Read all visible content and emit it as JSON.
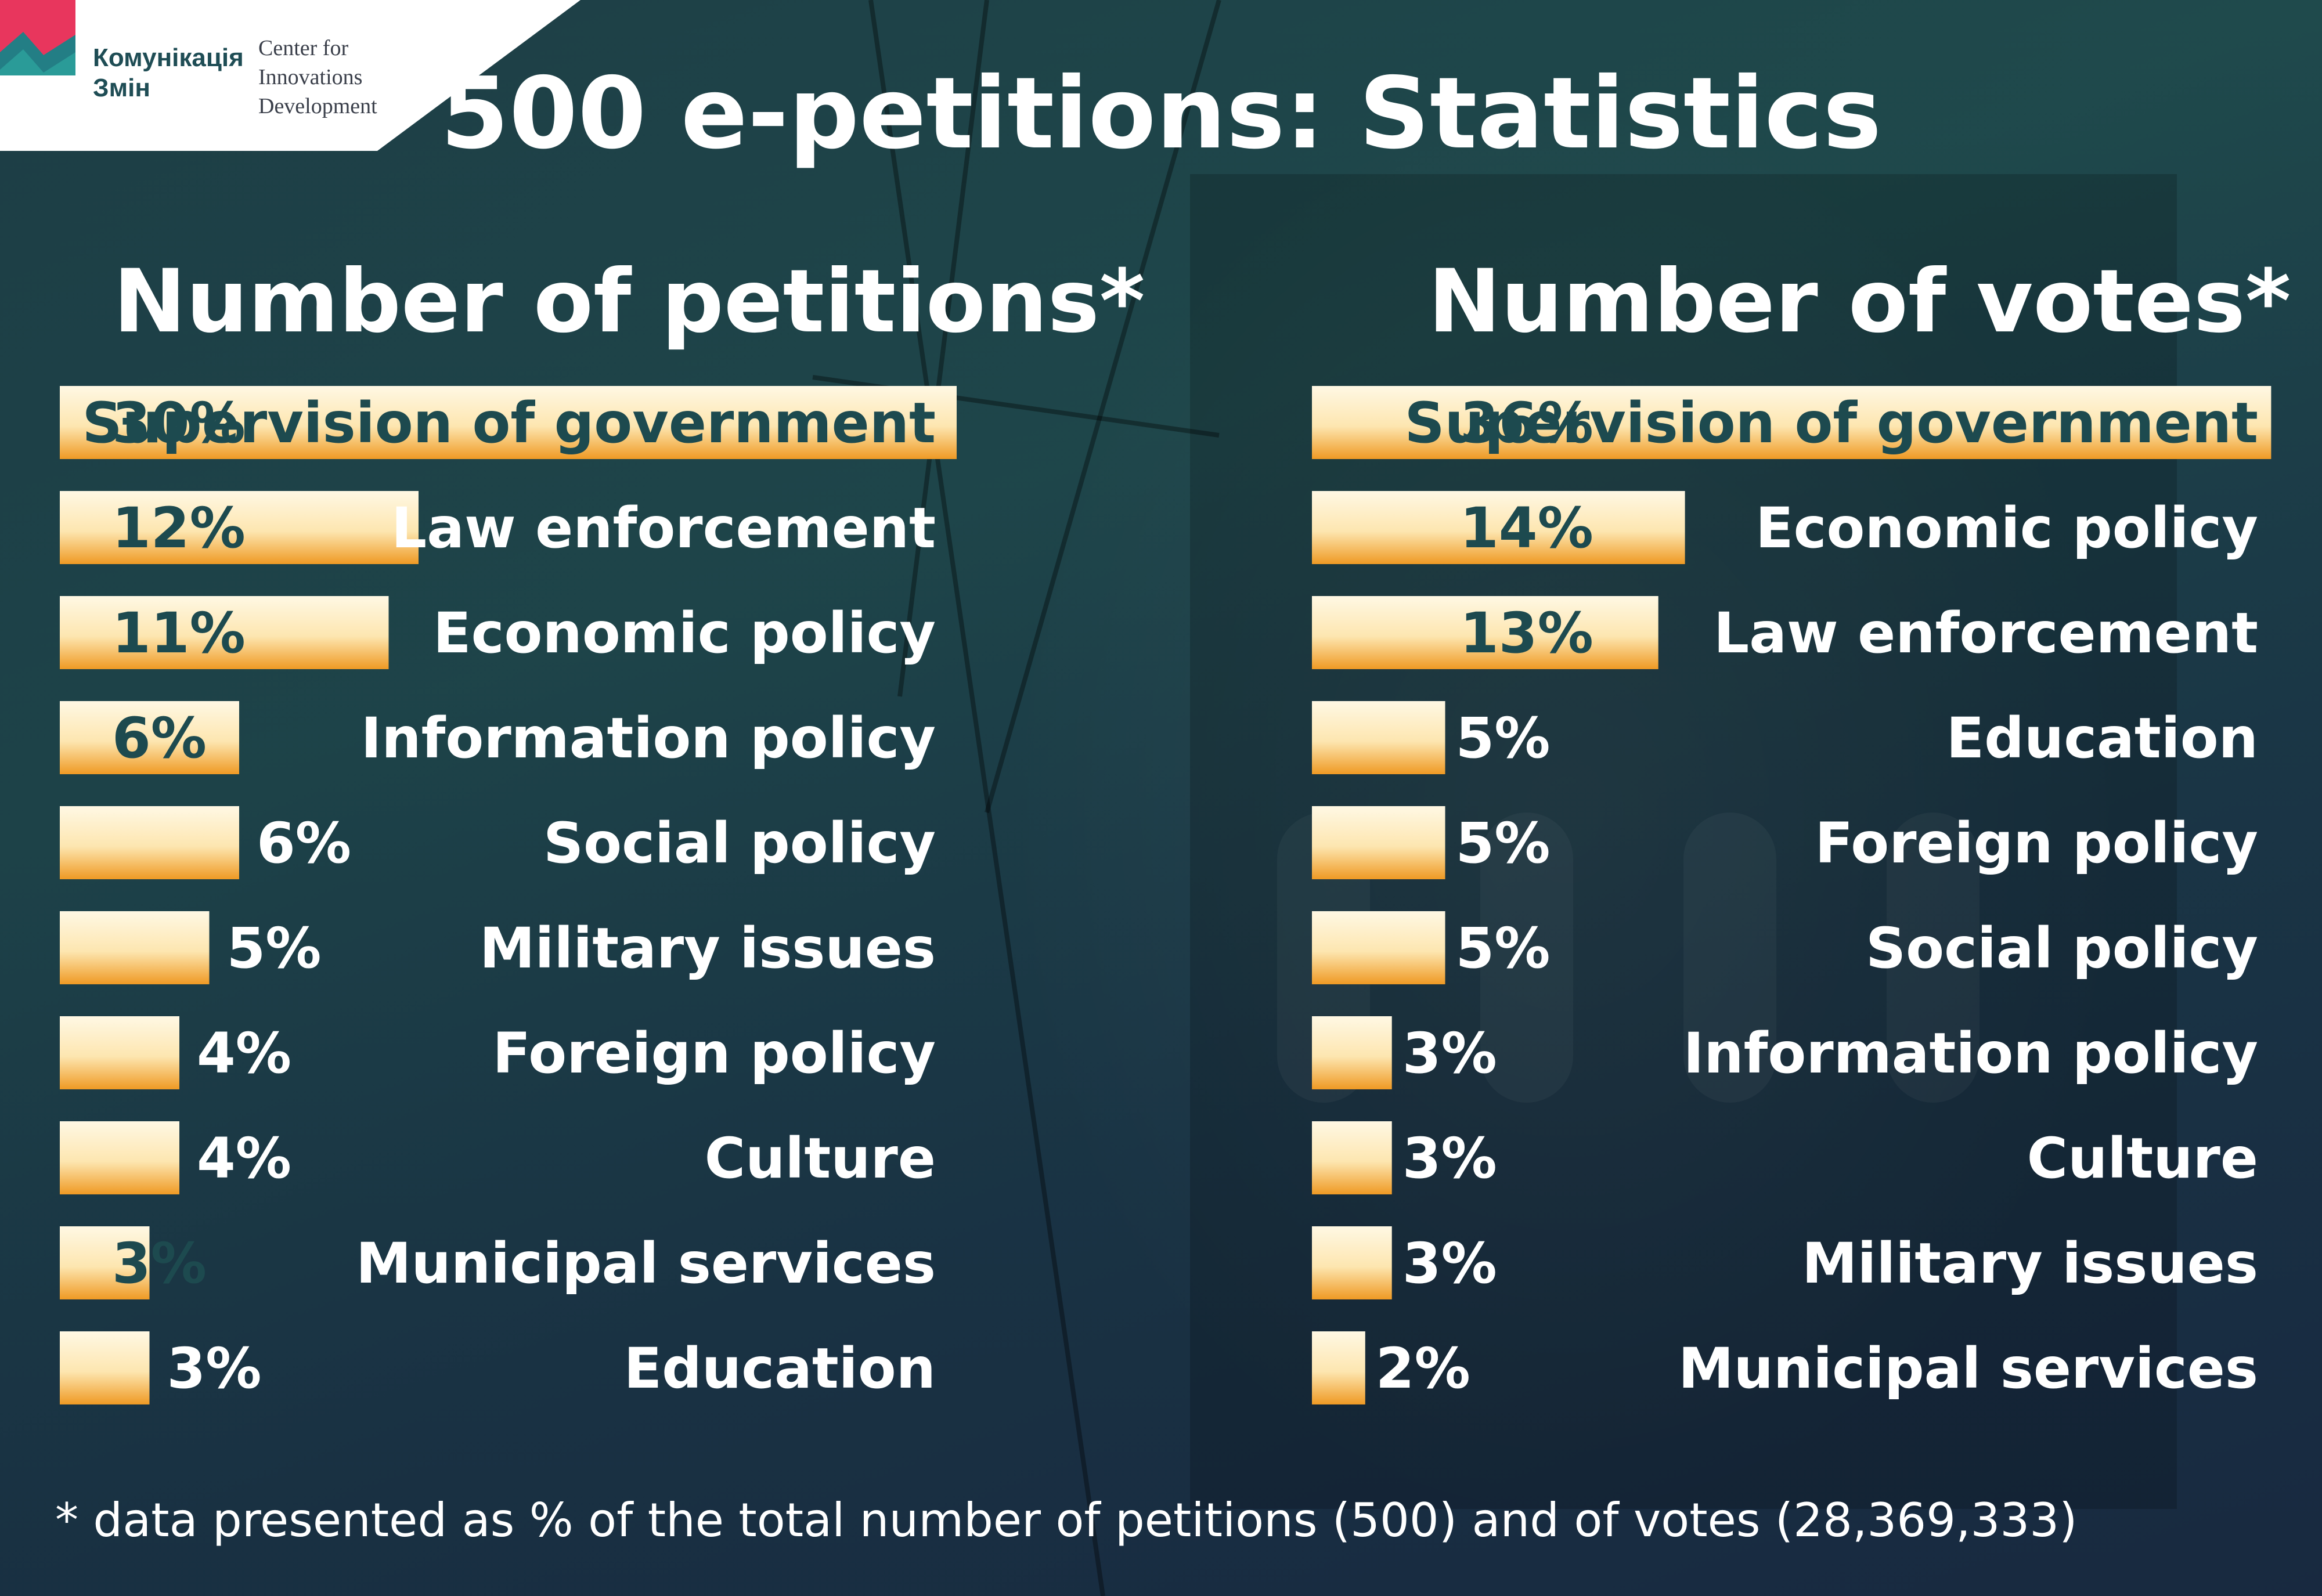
{
  "logo": {
    "kz_line1": "Комунікація",
    "kz_line2": "Змін",
    "cid_line1": "Center for",
    "cid_line2": "Innovations",
    "cid_line3": "Development"
  },
  "title": "500 e-petitions: Statistics",
  "footnote": "* data presented as % of the total number of petitions (500) and of votes (28,369,333)",
  "colors": {
    "bar_light": "#fff8e4",
    "bar_dark": "#ef9a24",
    "text_on_bar": "#1d4a4f",
    "text": "#ffffff",
    "background": "#1f4a4c"
  },
  "chart_data": [
    {
      "type": "bar",
      "title": "Number of petitions*",
      "unit": "%",
      "categories": [
        "Supervision of government",
        "Law enforcement",
        "Economic policy",
        "Information policy",
        "Social policy",
        "Military issues",
        "Foreign policy",
        "Culture",
        "Municipal services",
        "Education"
      ],
      "values": [
        30,
        12,
        11,
        6,
        6,
        5,
        4,
        4,
        3,
        3
      ],
      "labels": [
        "30%",
        "12%",
        "11%",
        "6%",
        "6%",
        "5%",
        "4%",
        "4%",
        "3%",
        "3%"
      ]
    },
    {
      "type": "bar",
      "title": "Number of votes*",
      "unit": "%",
      "categories": [
        "Supervision of government",
        "Economic policy",
        "Law enforcement",
        "Education",
        "Foreign policy",
        "Social policy",
        "Information policy",
        "Culture",
        "Military issues",
        "Municipal services"
      ],
      "values": [
        36,
        14,
        13,
        5,
        5,
        5,
        3,
        3,
        3,
        2
      ],
      "labels": [
        "36%",
        "14%",
        "13%",
        "5%",
        "5%",
        "5%",
        "3%",
        "3%",
        "3%",
        "2%"
      ]
    }
  ]
}
